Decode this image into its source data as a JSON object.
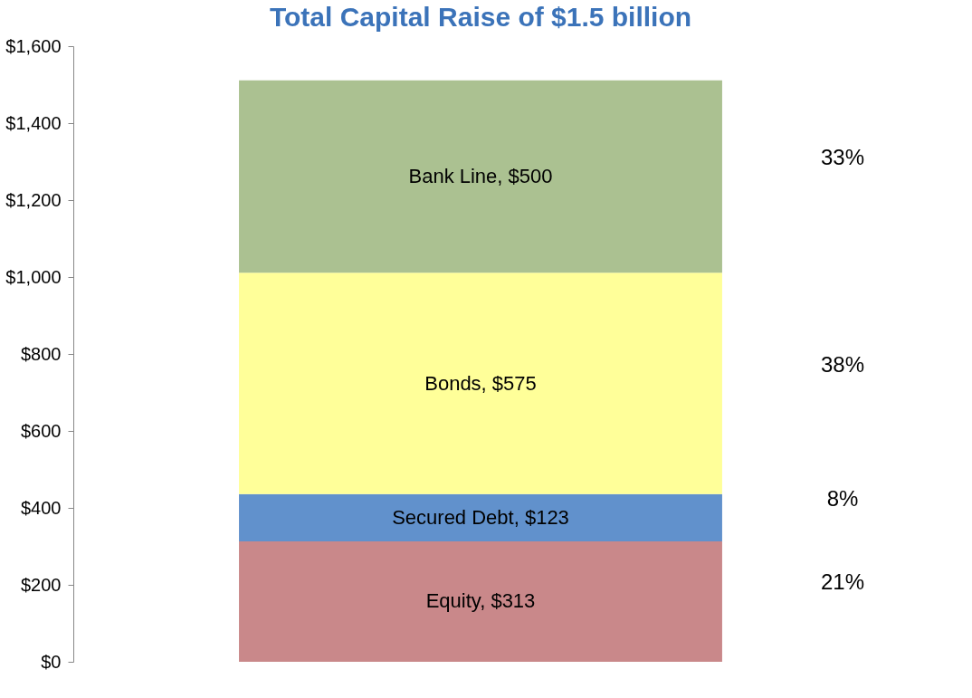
{
  "chart_data": {
    "type": "bar",
    "title": "Total Capital Raise of $1.5 billion",
    "stacked": true,
    "categories": [
      null
    ],
    "series": [
      {
        "color": "#c9888a",
        "values": [
          313
        ],
        "value_labels": [
          "Equity, $313"
        ]
      },
      {
        "color": "#6191cc",
        "values": [
          123
        ],
        "value_labels": [
          "Secured Debt, $123"
        ]
      },
      {
        "color": "#ffff99",
        "values": [
          575
        ],
        "value_labels": [
          "Bonds, $575"
        ]
      },
      {
        "color": "#abc191",
        "values": [
          500
        ],
        "value_labels": [
          "Bank Line, $500"
        ]
      }
    ],
    "ylim": [
      0,
      1600
    ],
    "yticks": [
      {
        "value": 0,
        "label": "$0"
      },
      {
        "value": 200,
        "label": "$200"
      },
      {
        "value": 400,
        "label": "$400"
      },
      {
        "value": 600,
        "label": "$600"
      },
      {
        "value": 800,
        "label": "$800"
      },
      {
        "value": 1000,
        "label": "$1,000"
      },
      {
        "value": 1200,
        "label": "$1,200"
      },
      {
        "value": 1400,
        "label": "$1,400"
      },
      {
        "value": 1600,
        "label": "$1,600"
      }
    ],
    "annotations": [
      "21%",
      "8%",
      "38%",
      "33%"
    ],
    "grid": false,
    "tick_labels": "y"
  }
}
